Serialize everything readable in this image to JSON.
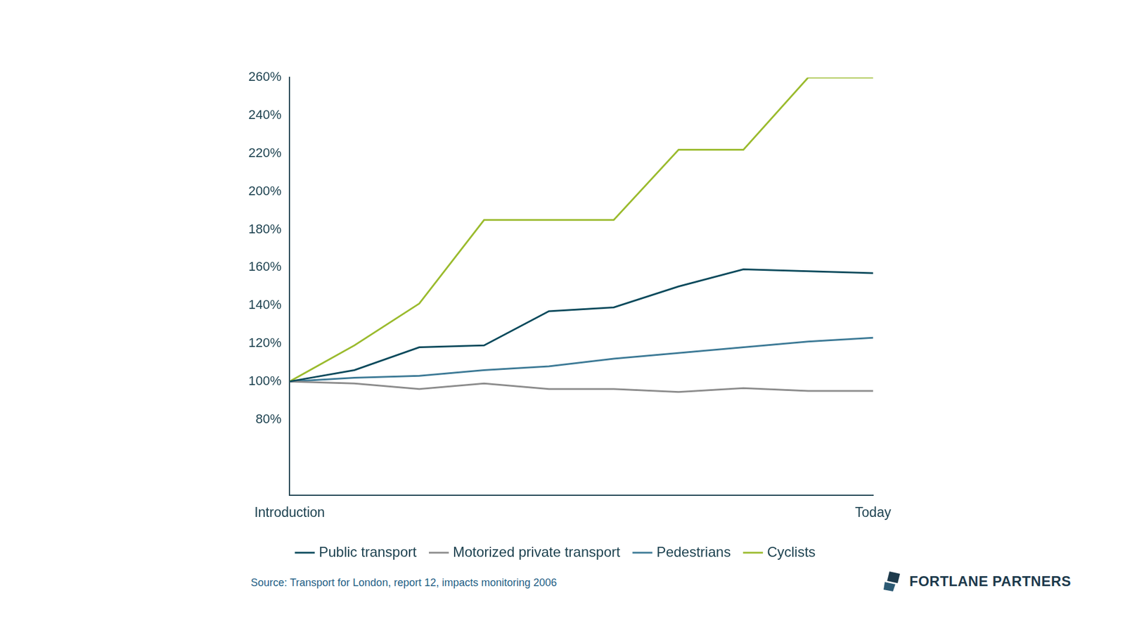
{
  "chart_data": {
    "type": "line",
    "categories": [
      "Introduction",
      null,
      null,
      null,
      null,
      null,
      null,
      null,
      null,
      "Today"
    ],
    "series": [
      {
        "name": "Public transport",
        "color": "#0b4a5c",
        "values": [
          100,
          106,
          118,
          119,
          137,
          139,
          150,
          159,
          158,
          157
        ]
      },
      {
        "name": "Motorized private transport",
        "color": "#8c8c8c",
        "values": [
          100,
          99,
          96,
          99,
          96,
          96,
          94.5,
          96.5,
          95,
          95
        ]
      },
      {
        "name": "Pedestrians",
        "color": "#3d7a96",
        "values": [
          100,
          102,
          103,
          106,
          108,
          112,
          115,
          118,
          121,
          123
        ]
      },
      {
        "name": "Cyclists",
        "color": "#9bbb2e",
        "values": [
          100,
          119,
          141,
          185,
          185,
          185,
          222,
          222,
          260,
          260
        ]
      }
    ],
    "ylim": [
      40,
      260
    ],
    "yticks": [
      {
        "value": 80,
        "label": "80%"
      },
      {
        "value": 100,
        "label": "100%"
      },
      {
        "value": 120,
        "label": "120%"
      },
      {
        "value": 140,
        "label": "140%"
      },
      {
        "value": 160,
        "label": "160%"
      },
      {
        "value": 180,
        "label": "180%"
      },
      {
        "value": 200,
        "label": "200%"
      },
      {
        "value": 220,
        "label": "220%"
      },
      {
        "value": 240,
        "label": "240%"
      },
      {
        "value": 260,
        "label": "260%"
      }
    ],
    "grid": false,
    "legend": "bottom",
    "source": "Source: Transport for London, report 12, impacts monitoring 2006",
    "logo_text": "FORTLANE PARTNERS"
  }
}
